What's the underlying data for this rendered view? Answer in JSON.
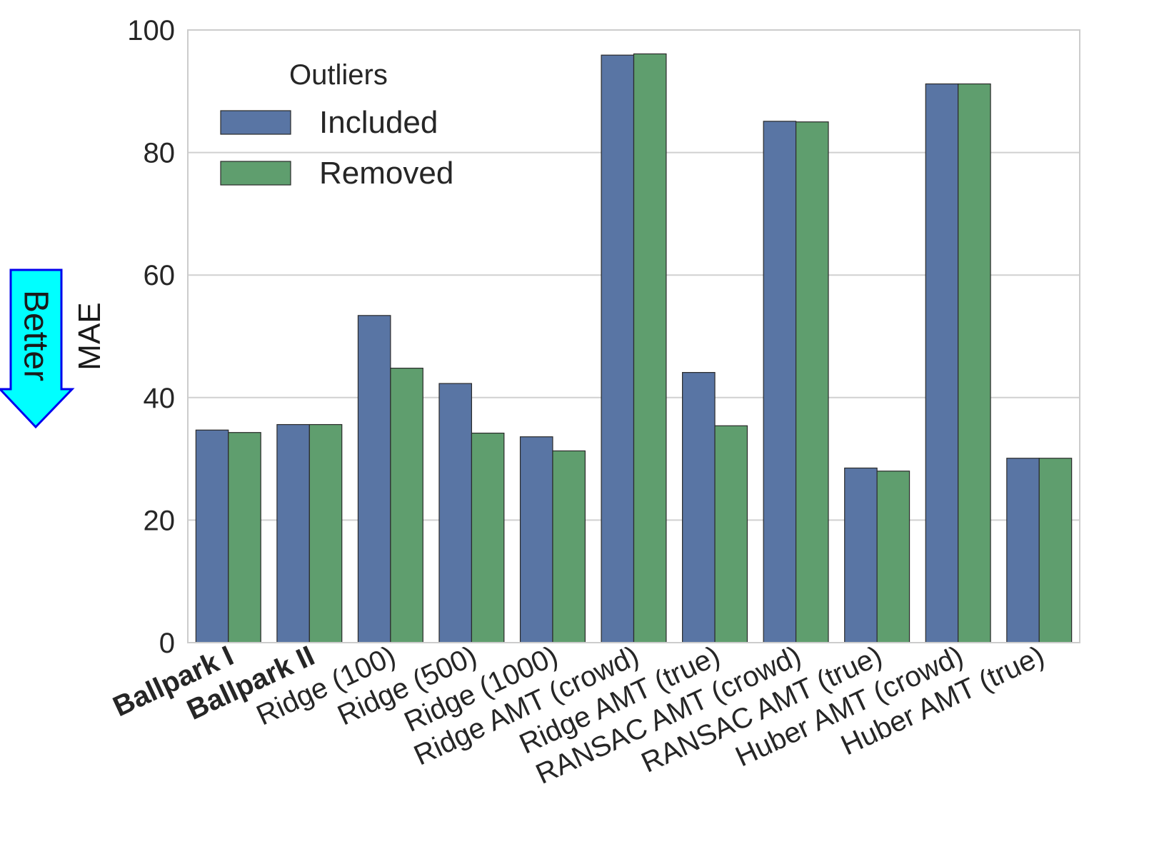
{
  "chart_data": {
    "type": "bar",
    "ylabel": "MAE",
    "ylim": [
      0,
      100
    ],
    "yticks": [
      0,
      20,
      40,
      60,
      80,
      100
    ],
    "grid": true,
    "legend": {
      "title": "Outliers",
      "placement": "top-left"
    },
    "categories": [
      "Ballpark I",
      "Ballpark II",
      "Ridge (100)",
      "Ridge (500)",
      "Ridge (1000)",
      "Ridge AMT (crowd)",
      "Ridge AMT (true)",
      "RANSAC AMT (crowd)",
      "RANSAC AMT (true)",
      "Huber AMT (crowd)",
      "Huber AMT (true)"
    ],
    "bold_categories": [
      "Ballpark I",
      "Ballpark II"
    ],
    "series": [
      {
        "name": "Included",
        "color": "#5975a4",
        "values": [
          34.7,
          35.6,
          53.4,
          42.3,
          33.6,
          95.9,
          44.1,
          85.1,
          28.5,
          91.2,
          30.1
        ]
      },
      {
        "name": "Removed",
        "color": "#5f9e6e",
        "values": [
          34.3,
          35.6,
          44.8,
          34.2,
          31.3,
          96.1,
          35.4,
          85.0,
          28.0,
          91.2,
          30.1
        ]
      }
    ],
    "annotation": {
      "text": "Better",
      "fill_color": "#00ffff",
      "stroke_color": "#0000ee"
    }
  }
}
